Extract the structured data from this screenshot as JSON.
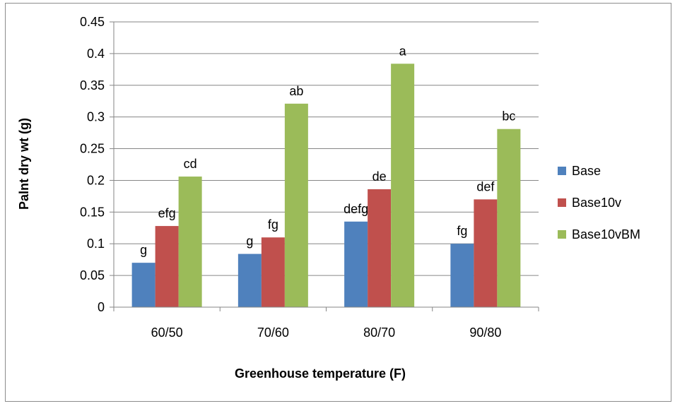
{
  "chart_data": {
    "type": "bar",
    "title": "",
    "xlabel": "Greenhouse temperature (F)",
    "ylabel": "Palnt dry wt (g)",
    "ylim": [
      0,
      0.45
    ],
    "yticks": [
      "0",
      "0.05",
      "0.1",
      "0.15",
      "0.2",
      "0.25",
      "0.3",
      "0.35",
      "0.4",
      "0.45"
    ],
    "categories": [
      "60/50",
      "70/60",
      "80/70",
      "90/80"
    ],
    "grid": true,
    "legend_position": "right",
    "series": [
      {
        "name": "Base",
        "color": "#4f81bd",
        "values": [
          0.07,
          0.084,
          0.135,
          0.1
        ],
        "labels": [
          "g",
          "g",
          "defg",
          "fg"
        ]
      },
      {
        "name": "Base10v",
        "color": "#c0504d",
        "values": [
          0.128,
          0.11,
          0.186,
          0.17
        ],
        "labels": [
          "efg",
          "fg",
          "de",
          "def"
        ]
      },
      {
        "name": "Base10vBM",
        "color": "#9bbb59",
        "values": [
          0.206,
          0.321,
          0.384,
          0.281
        ],
        "labels": [
          "cd",
          "ab",
          "a",
          "bc"
        ]
      }
    ]
  }
}
